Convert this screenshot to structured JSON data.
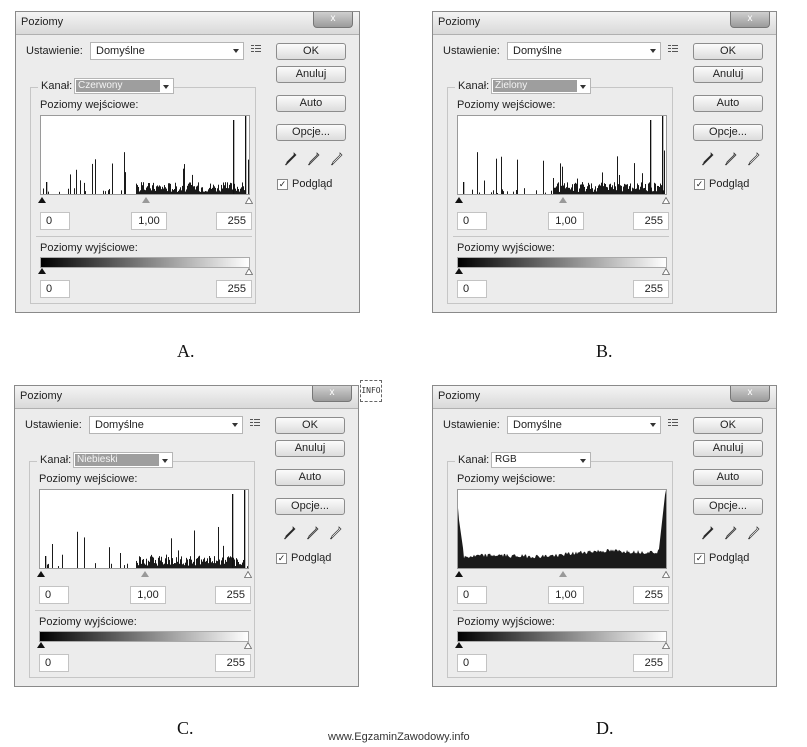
{
  "dialogs": [
    {
      "title": "Poziomy",
      "preset_label": "Ustawienie:",
      "preset_value": "Domyślne",
      "channel_label": "Kanał:",
      "channel_value": "Czerwony",
      "channel_highlight": true,
      "input_label": "Poziomy wejściowe:",
      "input_values": [
        "0",
        "1,00",
        "255"
      ],
      "output_label": "Poziomy wyjściowe:",
      "output_values": [
        "0",
        "255"
      ],
      "buttons": [
        "OK",
        "Anuluj",
        "Auto",
        "Opcje..."
      ],
      "preview_label": "Podgląd",
      "preview_checked": true,
      "histogram": "sparse"
    },
    {
      "title": "Poziomy",
      "preset_label": "Ustawienie:",
      "preset_value": "Domyślne",
      "channel_label": "Kanał:",
      "channel_value": "Zielony",
      "channel_highlight": true,
      "input_label": "Poziomy wejściowe:",
      "input_values": [
        "0",
        "1,00",
        "255"
      ],
      "output_label": "Poziomy wyjściowe:",
      "output_values": [
        "0",
        "255"
      ],
      "buttons": [
        "OK",
        "Anuluj",
        "Auto",
        "Opcje..."
      ],
      "preview_label": "Podgląd",
      "preview_checked": true,
      "histogram": "sparse"
    },
    {
      "title": "Poziomy",
      "preset_label": "Ustawienie:",
      "preset_value": "Domyślne",
      "channel_label": "Kanał:",
      "channel_value": "Niebieski",
      "channel_highlight": true,
      "input_label": "Poziomy wejściowe:",
      "input_values": [
        "0",
        "1,00",
        "255"
      ],
      "output_label": "Poziomy wyjściowe:",
      "output_values": [
        "0",
        "255"
      ],
      "buttons": [
        "OK",
        "Anuluj",
        "Auto",
        "Opcje..."
      ],
      "preview_label": "Podgląd",
      "preview_checked": true,
      "histogram": "sparse"
    },
    {
      "title": "Poziomy",
      "preset_label": "Ustawienie:",
      "preset_value": "Domyślne",
      "channel_label": "Kanał:",
      "channel_value": "RGB",
      "channel_highlight": false,
      "input_label": "Poziomy wejściowe:",
      "input_values": [
        "0",
        "1,00",
        "255"
      ],
      "output_label": "Poziomy wyjściowe:",
      "output_values": [
        "0",
        "255"
      ],
      "buttons": [
        "OK",
        "Anuluj",
        "Auto",
        "Opcje..."
      ],
      "preview_label": "Podgląd",
      "preview_checked": true,
      "histogram": "dense"
    }
  ],
  "captions": [
    "A.",
    "B.",
    "C.",
    "D."
  ],
  "watermark": "www.EgzaminZawodowy.info",
  "close_glyph": "x",
  "check_glyph": "✓",
  "info_icon_text": "INFO",
  "icons": [
    "close-icon",
    "menu-icon",
    "dropdown-arrow-icon",
    "eyedropper-black-icon",
    "eyedropper-gray-icon",
    "eyedropper-white-icon",
    "slider-triangle-icon",
    "info-icon"
  ]
}
